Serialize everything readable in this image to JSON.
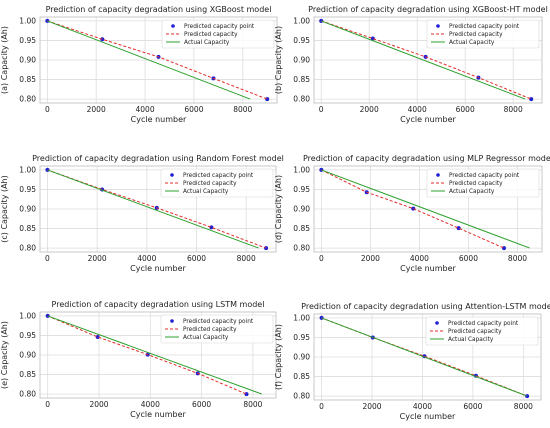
{
  "chart_data": [
    {
      "type": "line",
      "title": "Prediction of capacity degradation using XGBoost model",
      "xlabel": "Cycle number",
      "ylabel": "(a) Capacity (Ah)",
      "xlim": [
        -300,
        9400
      ],
      "ylim": [
        0.79,
        1.01
      ],
      "xticks": [
        0,
        2000,
        4000,
        6000,
        8000
      ],
      "xtick_labels": [
        "0",
        "2000",
        "4000",
        "6000",
        "8000"
      ],
      "yticks": [
        0.8,
        0.85,
        0.9,
        0.95,
        1.0
      ],
      "ytick_labels": [
        "0.80",
        "0.85",
        "0.90",
        "0.95",
        "1.00"
      ],
      "grid": true,
      "legend_position": "top-right",
      "series": [
        {
          "name": "Predicted capacity point",
          "kind": "scatter",
          "color": "#1f1fd6",
          "x": [
            0,
            2250,
            4550,
            6800,
            9000
          ],
          "y": [
            1.0,
            0.953,
            0.908,
            0.853,
            0.8
          ]
        },
        {
          "name": "Predicted capacity",
          "kind": "dashed",
          "color": "#e32b2b",
          "x": [
            0,
            2250,
            4550,
            6800,
            9000
          ],
          "y": [
            1.0,
            0.953,
            0.908,
            0.853,
            0.8
          ]
        },
        {
          "name": "Actual Capacity",
          "kind": "solid",
          "color": "#2ca02c",
          "x": [
            0,
            8300
          ],
          "y": [
            1.0,
            0.8
          ]
        }
      ]
    },
    {
      "type": "line",
      "title": "Prediction of capacity degradation using XGBoost-HT model",
      "xlabel": "Cycle number",
      "ylabel": "(b) Capacity (Ah)",
      "xlim": [
        -300,
        9200
      ],
      "ylim": [
        0.79,
        1.01
      ],
      "xticks": [
        0,
        2000,
        4000,
        6000,
        8000
      ],
      "xtick_labels": [
        "0",
        "2000",
        "4000",
        "6000",
        "8000"
      ],
      "yticks": [
        0.8,
        0.85,
        0.9,
        0.95,
        1.0
      ],
      "ytick_labels": [
        "0.80",
        "0.85",
        "0.90",
        "0.95",
        "1.00"
      ],
      "grid": true,
      "legend_position": "top-right",
      "series": [
        {
          "name": "Predicted capacity point",
          "kind": "scatter",
          "color": "#1f1fd6",
          "x": [
            0,
            2150,
            4350,
            6550,
            8750
          ],
          "y": [
            1.0,
            0.955,
            0.908,
            0.855,
            0.8
          ]
        },
        {
          "name": "Predicted capacity",
          "kind": "dashed",
          "color": "#e32b2b",
          "x": [
            0,
            2150,
            4350,
            6550,
            8750
          ],
          "y": [
            1.0,
            0.955,
            0.908,
            0.855,
            0.8
          ]
        },
        {
          "name": "Actual Capacity",
          "kind": "solid",
          "color": "#2ca02c",
          "x": [
            0,
            8500
          ],
          "y": [
            1.0,
            0.8
          ]
        }
      ]
    },
    {
      "type": "line",
      "title": "Prediction of capacity degradation using Random Forest model",
      "xlabel": "Cycle number",
      "ylabel": "(c) Capacity (Ah)",
      "xlim": [
        -300,
        9200
      ],
      "ylim": [
        0.79,
        1.01
      ],
      "xticks": [
        0,
        2000,
        4000,
        6000,
        8000
      ],
      "xtick_labels": [
        "0",
        "2000",
        "4000",
        "6000",
        "8000"
      ],
      "yticks": [
        0.8,
        0.85,
        0.9,
        0.95,
        1.0
      ],
      "ytick_labels": [
        "0.80",
        "0.85",
        "0.90",
        "0.95",
        "1.00"
      ],
      "grid": true,
      "legend_position": "top-right",
      "series": [
        {
          "name": "Predicted capacity point",
          "kind": "scatter",
          "color": "#1f1fd6",
          "x": [
            0,
            2200,
            4400,
            6600,
            8800
          ],
          "y": [
            1.0,
            0.95,
            0.903,
            0.853,
            0.8
          ]
        },
        {
          "name": "Predicted capacity",
          "kind": "dashed",
          "color": "#e32b2b",
          "x": [
            0,
            2200,
            4400,
            6600,
            8800
          ],
          "y": [
            1.0,
            0.95,
            0.903,
            0.853,
            0.8
          ]
        },
        {
          "name": "Actual Capacity",
          "kind": "solid",
          "color": "#2ca02c",
          "x": [
            0,
            8500
          ],
          "y": [
            1.0,
            0.8
          ]
        }
      ]
    },
    {
      "type": "line",
      "title": "Prediction of capacity degradation using MLP Regressor model",
      "xlabel": "Cycle number",
      "ylabel": "(d) Capacity (Ah)",
      "xlim": [
        -300,
        9000
      ],
      "ylim": [
        0.79,
        1.01
      ],
      "xticks": [
        0,
        2000,
        4000,
        6000,
        8000
      ],
      "xtick_labels": [
        "0",
        "2000",
        "4000",
        "6000",
        "8000"
      ],
      "yticks": [
        0.8,
        0.85,
        0.9,
        0.95,
        1.0
      ],
      "ytick_labels": [
        "0.80",
        "0.85",
        "0.90",
        "0.95",
        "1.00"
      ],
      "grid": true,
      "legend_position": "top-right",
      "series": [
        {
          "name": "Predicted capacity point",
          "kind": "scatter",
          "color": "#1f1fd6",
          "x": [
            0,
            1850,
            3750,
            5600,
            7450
          ],
          "y": [
            1.0,
            0.943,
            0.901,
            0.851,
            0.8
          ]
        },
        {
          "name": "Predicted capacity",
          "kind": "dashed",
          "color": "#e32b2b",
          "x": [
            0,
            1850,
            3750,
            5600,
            7450
          ],
          "y": [
            1.0,
            0.943,
            0.901,
            0.851,
            0.8
          ]
        },
        {
          "name": "Actual Capacity",
          "kind": "solid",
          "color": "#2ca02c",
          "x": [
            0,
            8500
          ],
          "y": [
            1.0,
            0.8
          ]
        }
      ]
    },
    {
      "type": "line",
      "title": "Prediction of capacity degradation using LSTM model",
      "xlabel": "Cycle number",
      "ylabel": "(e) Capacity (Ah)",
      "xlim": [
        -300,
        8900
      ],
      "ylim": [
        0.79,
        1.01
      ],
      "xticks": [
        0,
        2000,
        4000,
        6000,
        8000
      ],
      "xtick_labels": [
        "0",
        "2000",
        "4000",
        "6000",
        "8000"
      ],
      "yticks": [
        0.8,
        0.85,
        0.9,
        0.95,
        1.0
      ],
      "ytick_labels": [
        "0.80",
        "0.85",
        "0.90",
        "0.95",
        "1.00"
      ],
      "grid": true,
      "legend_position": "top-right",
      "series": [
        {
          "name": "Predicted capacity point",
          "kind": "scatter",
          "color": "#1f1fd6",
          "x": [
            0,
            1950,
            3900,
            5850,
            7750
          ],
          "y": [
            1.0,
            0.946,
            0.901,
            0.853,
            0.8
          ]
        },
        {
          "name": "Predicted capacity",
          "kind": "dashed",
          "color": "#e32b2b",
          "x": [
            0,
            1950,
            3900,
            5850,
            7750
          ],
          "y": [
            1.0,
            0.946,
            0.901,
            0.853,
            0.8
          ]
        },
        {
          "name": "Actual Capacity",
          "kind": "solid",
          "color": "#2ca02c",
          "x": [
            0,
            8350
          ],
          "y": [
            1.0,
            0.8
          ]
        }
      ]
    },
    {
      "type": "line",
      "title": "Prediction of capacity degradation using Attention-LSTM model",
      "xlabel": "Cycle number",
      "ylabel": "(f) Capacity (Ah)",
      "xlim": [
        -300,
        8700
      ],
      "ylim": [
        0.79,
        1.01
      ],
      "xticks": [
        0,
        2000,
        4000,
        6000,
        8000
      ],
      "xtick_labels": [
        "0",
        "2000",
        "4000",
        "6000",
        "8000"
      ],
      "yticks": [
        0.8,
        0.85,
        0.9,
        0.95,
        1.0
      ],
      "ytick_labels": [
        "0.80",
        "0.85",
        "0.90",
        "0.95",
        "1.00"
      ],
      "grid": true,
      "legend_position": "top-right",
      "series": [
        {
          "name": "Predicted capacity point",
          "kind": "scatter",
          "color": "#1f1fd6",
          "x": [
            0,
            2030,
            4080,
            6120,
            8150
          ],
          "y": [
            1.0,
            0.95,
            0.902,
            0.852,
            0.8
          ]
        },
        {
          "name": "Predicted capacity",
          "kind": "dashed",
          "color": "#e32b2b",
          "x": [
            0,
            2030,
            4080,
            6120,
            8150
          ],
          "y": [
            1.0,
            0.95,
            0.902,
            0.852,
            0.8
          ]
        },
        {
          "name": "Actual Capacity",
          "kind": "solid",
          "color": "#2ca02c",
          "x": [
            0,
            8150
          ],
          "y": [
            1.0,
            0.8
          ]
        }
      ]
    }
  ]
}
